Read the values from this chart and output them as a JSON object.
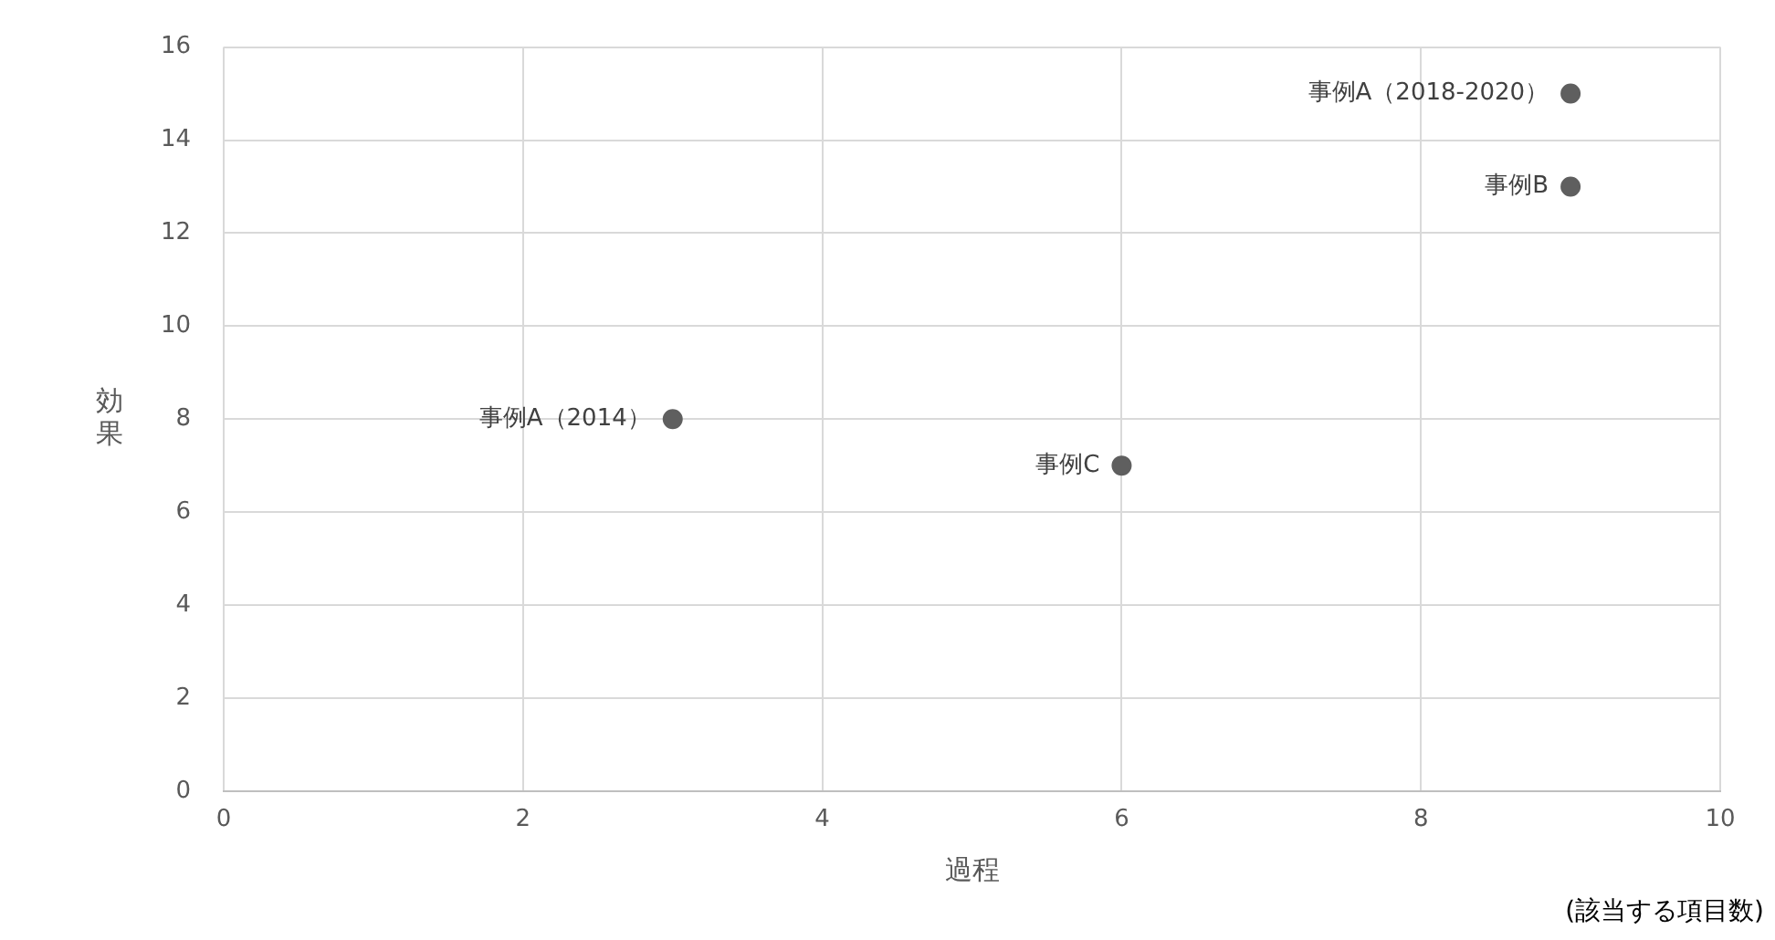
{
  "chart_data": {
    "type": "scatter",
    "xlabel": "過程",
    "ylabel": "効果",
    "x": [
      3,
      6,
      9,
      9
    ],
    "values": [
      8,
      7,
      15,
      13
    ],
    "color": "#5f5f5f",
    "marker": "circle",
    "xlim": [
      0,
      10
    ],
    "xticks": [
      0,
      2,
      4,
      6,
      8,
      10
    ],
    "ylim": [
      0,
      16
    ],
    "yticks": [
      0,
      2,
      4,
      6,
      8,
      10,
      12,
      14,
      16
    ],
    "grid": true,
    "legend": false,
    "annotations": [
      {
        "text": "事例A（2014）",
        "x": 3,
        "y": 8
      },
      {
        "text": "事例C",
        "x": 6,
        "y": 7
      },
      {
        "text": "事例A（2018-2020）",
        "x": 9,
        "y": 15
      },
      {
        "text": "事例B",
        "x": 9,
        "y": 13
      },
      "(該当する項目数)"
    ]
  }
}
